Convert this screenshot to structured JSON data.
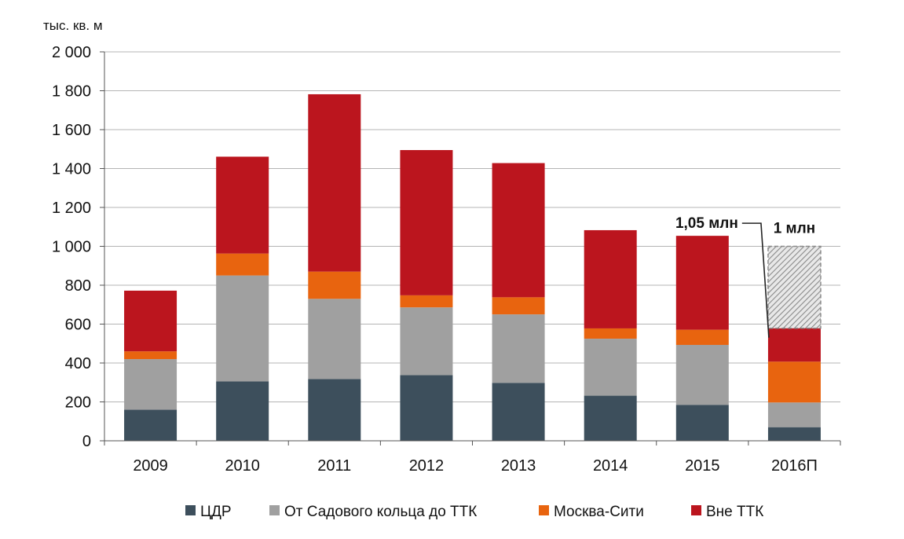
{
  "chart_data": {
    "type": "bar",
    "stacked": true,
    "unit_label": "тыс. кв. м",
    "categories": [
      "2009",
      "2010",
      "2011",
      "2012",
      "2013",
      "2014",
      "2015",
      "2016П"
    ],
    "series": [
      {
        "name": "ЦДР",
        "color": "#3d4f5c",
        "values": [
          160,
          305,
          318,
          338,
          298,
          232,
          185,
          70
        ]
      },
      {
        "name": "От Садового кольца до ТТК",
        "color": "#a0a0a0",
        "values": [
          260,
          545,
          412,
          348,
          352,
          293,
          308,
          127
        ]
      },
      {
        "name": "Москва-Сити",
        "color": "#e8640f",
        "values": [
          40,
          113,
          140,
          62,
          88,
          53,
          78,
          210
        ]
      },
      {
        "name": "Вне ТТК",
        "color": "#bb151e",
        "values": [
          312,
          498,
          912,
          747,
          690,
          505,
          483,
          172
        ]
      }
    ],
    "forecast_remainder": {
      "category": "2016П",
      "bottom": 579,
      "top": 1000
    },
    "ylim": [
      0,
      2000
    ],
    "yticks": [
      0,
      200,
      400,
      600,
      800,
      1000,
      1200,
      1400,
      1600,
      1800,
      2000
    ],
    "ytick_labels": [
      "0",
      "200",
      "400",
      "600",
      "800",
      "1 000",
      "1 200",
      "1 400",
      "1 600",
      "1 800",
      "2 000"
    ],
    "grid": true,
    "legend_position": "bottom",
    "annotations": [
      {
        "text": "1,05 млн",
        "category": "2015",
        "value": 1050
      },
      {
        "text": "1 млн",
        "category": "2016П",
        "value": 1000
      }
    ]
  }
}
